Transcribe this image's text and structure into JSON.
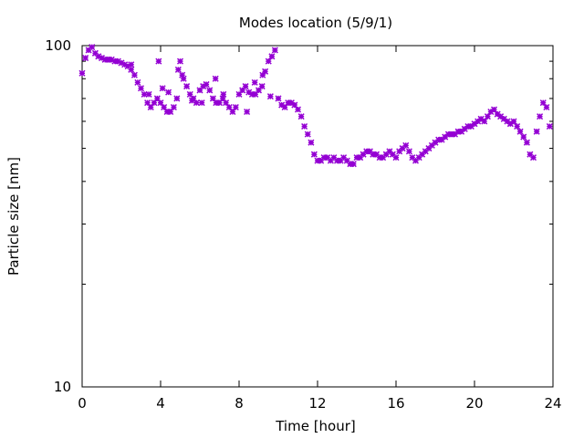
{
  "chart_data": {
    "type": "scatter",
    "title": "Modes location (5/9/1)",
    "xlabel": "Time [hour]",
    "ylabel": "Particle size [nm]",
    "xlim": [
      0,
      24
    ],
    "ylim": [
      10,
      100
    ],
    "y_scale": "log",
    "x_ticks": [
      0,
      4,
      8,
      12,
      16,
      20,
      24
    ],
    "x_tick_labels": [
      "0",
      "4",
      "8",
      "12",
      "16",
      "20",
      "24"
    ],
    "y_tick_labels": [
      "10",
      "100"
    ],
    "grid": false,
    "legend": "none",
    "marker": "asterisk",
    "color": "#9400d3",
    "series": [
      {
        "x": [
          0.0,
          0.17,
          0.33,
          0.5,
          0.67,
          0.83,
          1.0,
          1.17,
          1.33,
          1.5,
          1.67,
          1.83,
          2.0,
          2.17,
          2.33,
          2.5,
          2.67,
          2.83,
          3.0,
          3.17,
          3.33,
          3.5,
          3.67,
          3.83,
          4.0,
          4.17,
          4.33,
          4.5,
          4.67,
          4.83,
          5.0,
          5.17,
          5.33,
          5.5,
          5.67,
          5.83,
          6.0,
          6.17,
          6.33,
          6.5,
          6.67,
          6.83,
          7.0,
          7.17,
          7.33,
          7.5,
          7.67,
          7.83,
          8.0,
          8.17,
          8.33,
          8.5,
          8.67,
          8.83,
          9.0,
          9.17,
          9.33,
          9.5,
          9.67,
          9.83,
          10.0,
          10.17,
          10.33,
          10.5,
          10.67,
          10.83,
          11.0,
          11.17,
          11.33,
          11.5,
          11.67,
          11.83,
          12.0,
          12.17,
          12.33,
          12.5,
          12.67,
          12.83,
          13.0,
          13.17,
          13.33,
          13.5,
          13.67,
          13.83,
          14.0,
          14.17,
          14.33,
          14.5,
          14.67,
          14.83,
          15.0,
          15.17,
          15.33,
          15.5,
          15.67,
          15.83,
          16.0,
          16.17,
          16.33,
          16.5,
          16.67,
          16.83,
          17.0,
          17.17,
          17.33,
          17.5,
          17.67,
          17.83,
          18.0,
          18.17,
          18.33,
          18.5,
          18.67,
          18.83,
          19.0,
          19.17,
          19.33,
          19.5,
          19.67,
          19.83,
          20.0,
          20.17,
          20.33,
          20.5,
          20.67,
          20.83,
          21.0,
          21.17,
          21.33,
          21.5,
          21.67,
          21.83,
          22.0,
          22.17,
          22.33,
          22.5,
          22.67,
          22.83,
          23.0,
          23.17,
          23.33,
          23.5,
          23.67,
          23.83
        ],
        "y": [
          83,
          92,
          97,
          99,
          95,
          93,
          92,
          91,
          91,
          91,
          90,
          90,
          89,
          88,
          87,
          85,
          82,
          78,
          75,
          72,
          68,
          66,
          68,
          70,
          68,
          66,
          64,
          64,
          66,
          70,
          90,
          80,
          76,
          72,
          70,
          68,
          74,
          76,
          77,
          74,
          70,
          68,
          68,
          70,
          68,
          66,
          64,
          66,
          72,
          74,
          76,
          73,
          72,
          72,
          74,
          76,
          84,
          90,
          93,
          97,
          70,
          67,
          66,
          68,
          68,
          67,
          65,
          62,
          58,
          55,
          52,
          48,
          46,
          46,
          47,
          47,
          46,
          47,
          46,
          46,
          47,
          46,
          45,
          45,
          47,
          47,
          48,
          49,
          49,
          48,
          48,
          47,
          47,
          48,
          49,
          48,
          47,
          49,
          50,
          51,
          49,
          47,
          46,
          47,
          48,
          49,
          50,
          51,
          52,
          53,
          53,
          54,
          55,
          55,
          55,
          56,
          56,
          57,
          58,
          58,
          59,
          60,
          61,
          60,
          62,
          64,
          65,
          63,
          62,
          61,
          60,
          59,
          60,
          58,
          56,
          54,
          52,
          48,
          47,
          56,
          62,
          68,
          66,
          58
        ]
      },
      {
        "x": [
          2.5,
          3.4,
          3.9,
          4.1,
          4.4,
          4.9,
          5.1,
          5.6,
          6.1,
          6.8,
          7.2,
          8.4,
          8.8,
          9.2,
          9.6
        ],
        "y": [
          88,
          72,
          90,
          75,
          73,
          85,
          82,
          69,
          68,
          80,
          72,
          64,
          78,
          82,
          71
        ]
      }
    ]
  }
}
